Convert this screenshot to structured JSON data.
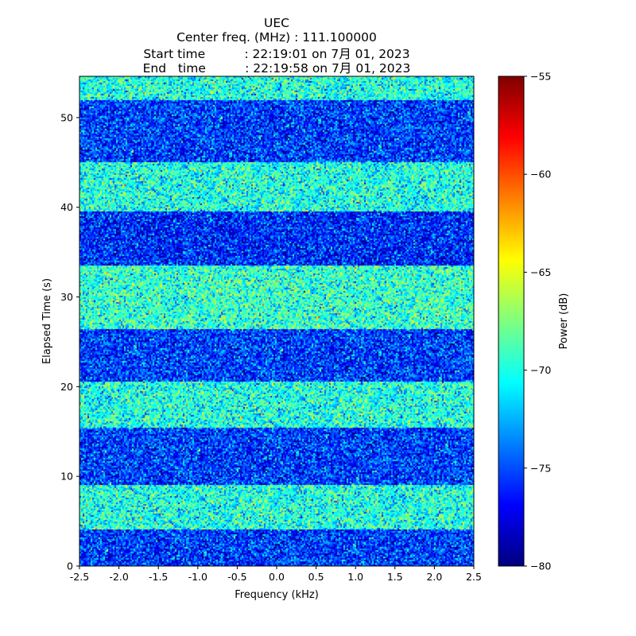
{
  "chart_data": {
    "type": "heatmap",
    "title_lines": [
      "UEC",
      "Center freq. (MHz) : 111.100000",
      "Start time          : 22:19:01 on 7月 01, 2023",
      "End   time          : 22:19:58 on 7月 01, 2023"
    ],
    "xlabel": "Frequency (kHz)",
    "ylabel": "Elapsed Time (s)",
    "xlim": [
      -2.5,
      2.5
    ],
    "ylim": [
      0,
      54.6
    ],
    "xticks": [
      "-2.5",
      "-2.0",
      "-1.5",
      "-1.0",
      "-0.5",
      "0.0",
      "0.5",
      "1.0",
      "1.5",
      "2.0",
      "2.5"
    ],
    "xtick_values": [
      -2.5,
      -2.0,
      -1.5,
      -1.0,
      -0.5,
      0.0,
      0.5,
      1.0,
      1.5,
      2.0,
      2.5
    ],
    "yticks": [
      "0",
      "10",
      "20",
      "30",
      "40",
      "50"
    ],
    "ytick_values": [
      0,
      10,
      20,
      30,
      40,
      50
    ],
    "colorbar": {
      "label": "Power (dB)",
      "range": [
        -80,
        -55
      ],
      "colormap": "jet",
      "ticks": [
        "−80",
        "−75",
        "−70",
        "−65",
        "−60",
        "−55"
      ],
      "tick_values": [
        -80,
        -75,
        -70,
        -65,
        -60,
        -55
      ]
    },
    "bands": [
      {
        "t_start": 0.0,
        "t_end": 4.0,
        "level": "low",
        "mean_db": -75.5
      },
      {
        "t_start": 4.0,
        "t_end": 9.0,
        "level": "high",
        "mean_db": -70.0
      },
      {
        "t_start": 9.0,
        "t_end": 15.5,
        "level": "low",
        "mean_db": -75.5
      },
      {
        "t_start": 15.5,
        "t_end": 20.5,
        "level": "high",
        "mean_db": -70.0
      },
      {
        "t_start": 20.5,
        "t_end": 26.5,
        "level": "low",
        "mean_db": -75.5
      },
      {
        "t_start": 26.5,
        "t_end": 33.5,
        "level": "high",
        "mean_db": -69.5
      },
      {
        "t_start": 33.5,
        "t_end": 39.5,
        "level": "low",
        "mean_db": -76.0
      },
      {
        "t_start": 39.5,
        "t_end": 45.0,
        "level": "high",
        "mean_db": -70.0
      },
      {
        "t_start": 45.0,
        "t_end": 52.0,
        "level": "low",
        "mean_db": -75.5
      },
      {
        "t_start": 52.0,
        "t_end": 54.6,
        "level": "high",
        "mean_db": -70.0
      }
    ],
    "noise_std_db": 2.4
  }
}
